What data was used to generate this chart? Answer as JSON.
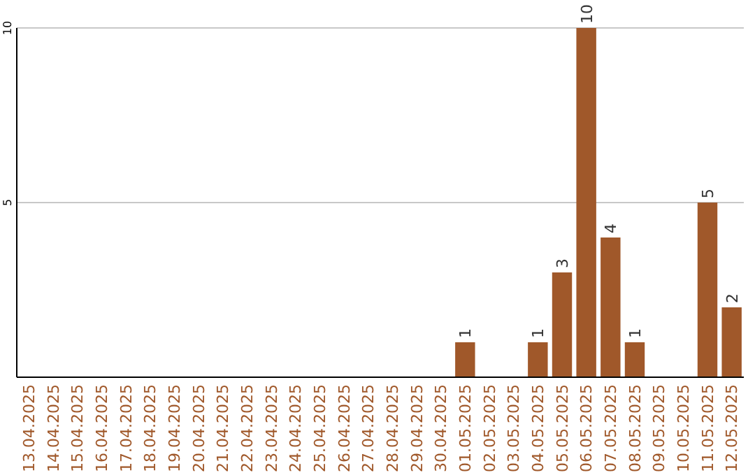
{
  "chart_data": {
    "type": "bar",
    "categories": [
      "13.04.2025",
      "14.04.2025",
      "15.04.2025",
      "16.04.2025",
      "17.04.2025",
      "18.04.2025",
      "19.04.2025",
      "20.04.2025",
      "21.04.2025",
      "22.04.2025",
      "23.04.2025",
      "24.04.2025",
      "25.04.2025",
      "26.04.2025",
      "27.04.2025",
      "28.04.2025",
      "29.04.2025",
      "30.04.2025",
      "01.05.2025",
      "02.05.2025",
      "03.05.2025",
      "04.05.2025",
      "05.05.2025",
      "06.05.2025",
      "07.05.2025",
      "08.05.2025",
      "09.05.2025",
      "10.05.2025",
      "11.05.2025",
      "12.05.2025"
    ],
    "values": [
      0,
      0,
      0,
      0,
      0,
      0,
      0,
      0,
      0,
      0,
      0,
      0,
      0,
      0,
      0,
      0,
      0,
      0,
      1,
      0,
      0,
      1,
      3,
      10,
      4,
      1,
      0,
      0,
      5,
      2
    ],
    "value_labels": [
      null,
      null,
      null,
      null,
      null,
      null,
      null,
      null,
      null,
      null,
      null,
      null,
      null,
      null,
      null,
      null,
      null,
      null,
      "1",
      null,
      null,
      "1",
      "3",
      "10",
      "4",
      "1",
      null,
      null,
      "5",
      "2"
    ],
    "color": "#a0582a",
    "ylim": [
      0,
      10
    ],
    "yticks": [
      5,
      10
    ],
    "grid": "y"
  }
}
